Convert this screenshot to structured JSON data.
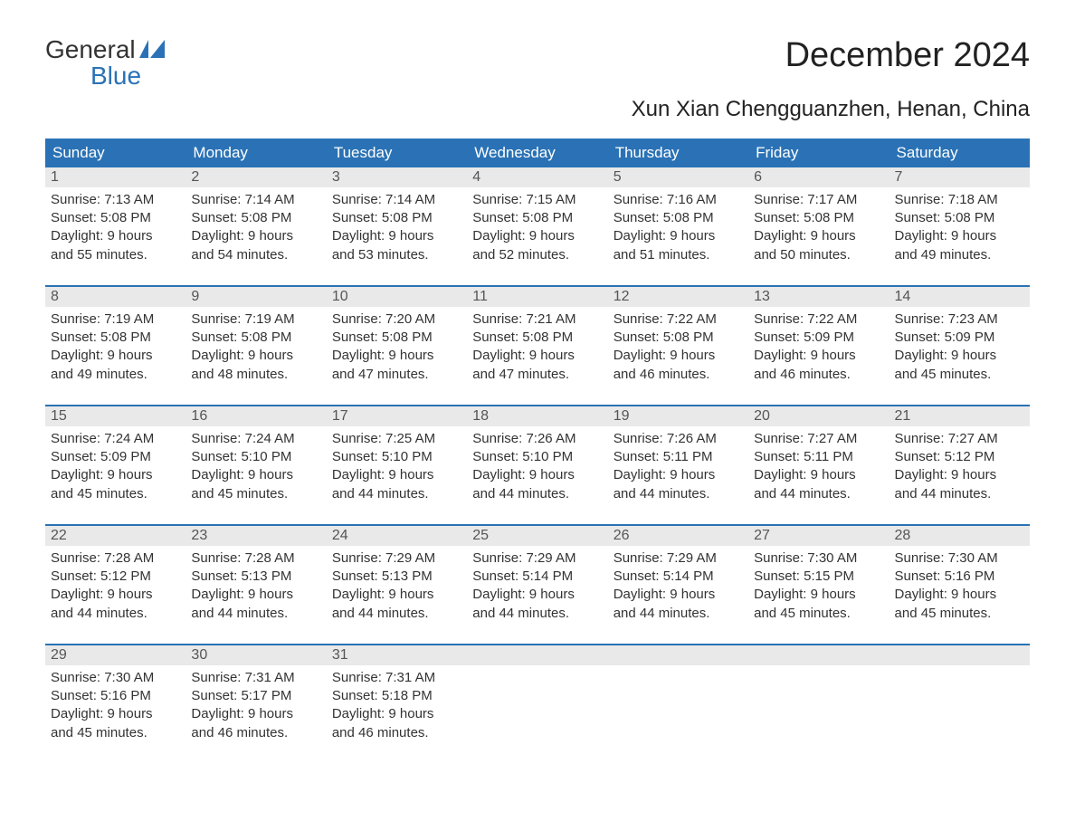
{
  "logo": {
    "general": "General",
    "blue": "Blue"
  },
  "title": "December 2024",
  "subtitle": "Xun Xian Chengguanzhen, Henan, China",
  "colors": {
    "header_bg": "#2a72b5",
    "header_text": "#ffffff",
    "daynum_bg": "#e9e9e9",
    "week_border": "#2a72b5",
    "body_text": "#333333",
    "page_bg": "#ffffff"
  },
  "typography": {
    "title_fontsize": 38,
    "subtitle_fontsize": 24,
    "dayhead_fontsize": 17,
    "body_fontsize": 15,
    "logo_fontsize": 28
  },
  "day_headers": [
    "Sunday",
    "Monday",
    "Tuesday",
    "Wednesday",
    "Thursday",
    "Friday",
    "Saturday"
  ],
  "weeks": [
    [
      {
        "n": "1",
        "sr": "Sunrise: 7:13 AM",
        "ss": "Sunset: 5:08 PM",
        "d1": "Daylight: 9 hours",
        "d2": "and 55 minutes."
      },
      {
        "n": "2",
        "sr": "Sunrise: 7:14 AM",
        "ss": "Sunset: 5:08 PM",
        "d1": "Daylight: 9 hours",
        "d2": "and 54 minutes."
      },
      {
        "n": "3",
        "sr": "Sunrise: 7:14 AM",
        "ss": "Sunset: 5:08 PM",
        "d1": "Daylight: 9 hours",
        "d2": "and 53 minutes."
      },
      {
        "n": "4",
        "sr": "Sunrise: 7:15 AM",
        "ss": "Sunset: 5:08 PM",
        "d1": "Daylight: 9 hours",
        "d2": "and 52 minutes."
      },
      {
        "n": "5",
        "sr": "Sunrise: 7:16 AM",
        "ss": "Sunset: 5:08 PM",
        "d1": "Daylight: 9 hours",
        "d2": "and 51 minutes."
      },
      {
        "n": "6",
        "sr": "Sunrise: 7:17 AM",
        "ss": "Sunset: 5:08 PM",
        "d1": "Daylight: 9 hours",
        "d2": "and 50 minutes."
      },
      {
        "n": "7",
        "sr": "Sunrise: 7:18 AM",
        "ss": "Sunset: 5:08 PM",
        "d1": "Daylight: 9 hours",
        "d2": "and 49 minutes."
      }
    ],
    [
      {
        "n": "8",
        "sr": "Sunrise: 7:19 AM",
        "ss": "Sunset: 5:08 PM",
        "d1": "Daylight: 9 hours",
        "d2": "and 49 minutes."
      },
      {
        "n": "9",
        "sr": "Sunrise: 7:19 AM",
        "ss": "Sunset: 5:08 PM",
        "d1": "Daylight: 9 hours",
        "d2": "and 48 minutes."
      },
      {
        "n": "10",
        "sr": "Sunrise: 7:20 AM",
        "ss": "Sunset: 5:08 PM",
        "d1": "Daylight: 9 hours",
        "d2": "and 47 minutes."
      },
      {
        "n": "11",
        "sr": "Sunrise: 7:21 AM",
        "ss": "Sunset: 5:08 PM",
        "d1": "Daylight: 9 hours",
        "d2": "and 47 minutes."
      },
      {
        "n": "12",
        "sr": "Sunrise: 7:22 AM",
        "ss": "Sunset: 5:08 PM",
        "d1": "Daylight: 9 hours",
        "d2": "and 46 minutes."
      },
      {
        "n": "13",
        "sr": "Sunrise: 7:22 AM",
        "ss": "Sunset: 5:09 PM",
        "d1": "Daylight: 9 hours",
        "d2": "and 46 minutes."
      },
      {
        "n": "14",
        "sr": "Sunrise: 7:23 AM",
        "ss": "Sunset: 5:09 PM",
        "d1": "Daylight: 9 hours",
        "d2": "and 45 minutes."
      }
    ],
    [
      {
        "n": "15",
        "sr": "Sunrise: 7:24 AM",
        "ss": "Sunset: 5:09 PM",
        "d1": "Daylight: 9 hours",
        "d2": "and 45 minutes."
      },
      {
        "n": "16",
        "sr": "Sunrise: 7:24 AM",
        "ss": "Sunset: 5:10 PM",
        "d1": "Daylight: 9 hours",
        "d2": "and 45 minutes."
      },
      {
        "n": "17",
        "sr": "Sunrise: 7:25 AM",
        "ss": "Sunset: 5:10 PM",
        "d1": "Daylight: 9 hours",
        "d2": "and 44 minutes."
      },
      {
        "n": "18",
        "sr": "Sunrise: 7:26 AM",
        "ss": "Sunset: 5:10 PM",
        "d1": "Daylight: 9 hours",
        "d2": "and 44 minutes."
      },
      {
        "n": "19",
        "sr": "Sunrise: 7:26 AM",
        "ss": "Sunset: 5:11 PM",
        "d1": "Daylight: 9 hours",
        "d2": "and 44 minutes."
      },
      {
        "n": "20",
        "sr": "Sunrise: 7:27 AM",
        "ss": "Sunset: 5:11 PM",
        "d1": "Daylight: 9 hours",
        "d2": "and 44 minutes."
      },
      {
        "n": "21",
        "sr": "Sunrise: 7:27 AM",
        "ss": "Sunset: 5:12 PM",
        "d1": "Daylight: 9 hours",
        "d2": "and 44 minutes."
      }
    ],
    [
      {
        "n": "22",
        "sr": "Sunrise: 7:28 AM",
        "ss": "Sunset: 5:12 PM",
        "d1": "Daylight: 9 hours",
        "d2": "and 44 minutes."
      },
      {
        "n": "23",
        "sr": "Sunrise: 7:28 AM",
        "ss": "Sunset: 5:13 PM",
        "d1": "Daylight: 9 hours",
        "d2": "and 44 minutes."
      },
      {
        "n": "24",
        "sr": "Sunrise: 7:29 AM",
        "ss": "Sunset: 5:13 PM",
        "d1": "Daylight: 9 hours",
        "d2": "and 44 minutes."
      },
      {
        "n": "25",
        "sr": "Sunrise: 7:29 AM",
        "ss": "Sunset: 5:14 PM",
        "d1": "Daylight: 9 hours",
        "d2": "and 44 minutes."
      },
      {
        "n": "26",
        "sr": "Sunrise: 7:29 AM",
        "ss": "Sunset: 5:14 PM",
        "d1": "Daylight: 9 hours",
        "d2": "and 44 minutes."
      },
      {
        "n": "27",
        "sr": "Sunrise: 7:30 AM",
        "ss": "Sunset: 5:15 PM",
        "d1": "Daylight: 9 hours",
        "d2": "and 45 minutes."
      },
      {
        "n": "28",
        "sr": "Sunrise: 7:30 AM",
        "ss": "Sunset: 5:16 PM",
        "d1": "Daylight: 9 hours",
        "d2": "and 45 minutes."
      }
    ],
    [
      {
        "n": "29",
        "sr": "Sunrise: 7:30 AM",
        "ss": "Sunset: 5:16 PM",
        "d1": "Daylight: 9 hours",
        "d2": "and 45 minutes."
      },
      {
        "n": "30",
        "sr": "Sunrise: 7:31 AM",
        "ss": "Sunset: 5:17 PM",
        "d1": "Daylight: 9 hours",
        "d2": "and 46 minutes."
      },
      {
        "n": "31",
        "sr": "Sunrise: 7:31 AM",
        "ss": "Sunset: 5:18 PM",
        "d1": "Daylight: 9 hours",
        "d2": "and 46 minutes."
      },
      null,
      null,
      null,
      null
    ]
  ]
}
